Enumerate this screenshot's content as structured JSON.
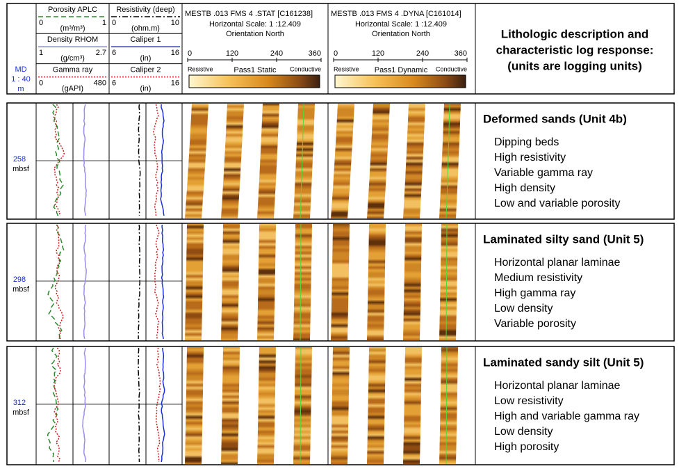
{
  "depth_header": {
    "label": "MD",
    "scale": "1 : 40",
    "unit": "m"
  },
  "tracks": [
    {
      "curves": [
        {
          "name": "Porosity APLC",
          "min": "0",
          "unit": "(m³/m³)",
          "max": "1"
        },
        {
          "name": "Density RHOM",
          "min": "1",
          "unit": "(g/cm³)",
          "max": "2.7"
        },
        {
          "name": "Gamma ray",
          "min": "0",
          "unit": "(gAPI)",
          "max": "480"
        }
      ]
    },
    {
      "curves": [
        {
          "name": "Resistivity (deep)",
          "min": "0",
          "unit": "(ohm.m)",
          "max": "10"
        },
        {
          "name": "Caliper 1",
          "min": "6",
          "unit": "(in)",
          "max": "16"
        },
        {
          "name": "Caliper 2",
          "min": "6",
          "unit": "(in)",
          "max": "16"
        }
      ]
    }
  ],
  "images": [
    {
      "title": "MESTB .013 FMS 4 .STAT [C161238]",
      "scale": "Horizontal Scale: 1 :12.409",
      "orientation": "Orientation North",
      "ticks": [
        "0",
        "120",
        "240",
        "360"
      ],
      "left": "Resistive",
      "name": "Pass1 Static",
      "right": "Conductive"
    },
    {
      "title": "MESTB .013 FMS 4 .DYNA [C161014]",
      "scale": "Horizontal Scale: 1 :12.409",
      "orientation": "Orientation North",
      "ticks": [
        "0",
        "120",
        "240",
        "360"
      ],
      "left": "Resistive",
      "name": "Pass1 Dynamic",
      "right": "Conductive"
    }
  ],
  "description_header": [
    "Lithologic description and",
    "characteristic log response:",
    "(units are logging units)"
  ],
  "panels": [
    {
      "depth": "258",
      "unit": "mbsf",
      "title": "Deformed sands (Unit 4b)",
      "lines": [
        "Dipping beds",
        "High resistivity",
        "Variable gamma ray",
        "High density",
        "Low and variable porosity"
      ]
    },
    {
      "depth": "298",
      "unit": "mbsf",
      "title": "Laminated silty sand (Unit 5)",
      "lines": [
        "Horizontal planar laminae",
        "Medium resistivity",
        "High gamma ray",
        "Low density",
        "Variable porosity"
      ]
    },
    {
      "depth": "312",
      "unit": "mbsf",
      "title": "Laminated sandy silt (Unit 5)",
      "lines": [
        "Horizontal planar laminae",
        "Low resistivity",
        "High and variable gamma ray",
        "Low density",
        "High porosity"
      ]
    }
  ]
}
